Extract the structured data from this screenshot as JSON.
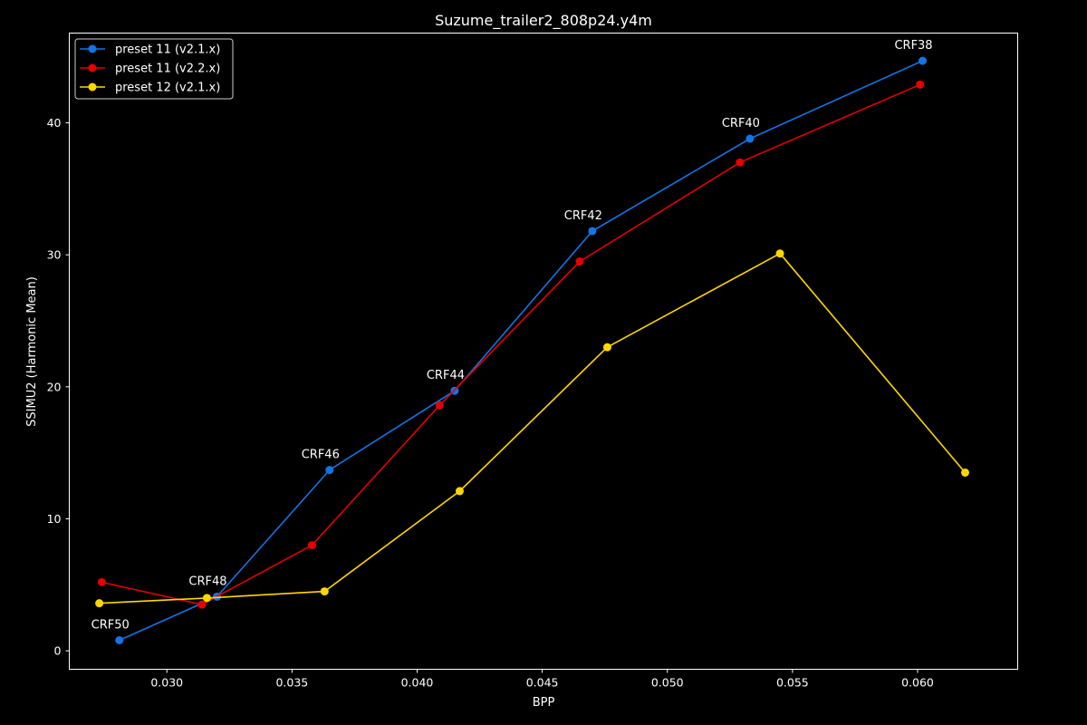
{
  "chart_data": {
    "type": "line",
    "title": "Suzume_trailer2_808p24.y4m",
    "xlabel": "BPP",
    "ylabel": "SSIMU2 (Harmonic Mean)",
    "xlim": [
      0.0261,
      0.064
    ],
    "ylim": [
      -1.4,
      46.8
    ],
    "x_ticks": [
      "0.030",
      "0.035",
      "0.040",
      "0.045",
      "0.050",
      "0.055",
      "0.060"
    ],
    "x_tick_values": [
      0.03,
      0.035,
      0.04,
      0.045,
      0.05,
      0.055,
      0.06
    ],
    "y_ticks": [
      "0",
      "10",
      "20",
      "30",
      "40"
    ],
    "y_tick_values": [
      0,
      10,
      20,
      30,
      40
    ],
    "grid": false,
    "legend_position": "top-left",
    "series": [
      {
        "name": "preset 11 (v2.1.x)",
        "color": "#1473e6",
        "x": [
          0.0281,
          0.032,
          0.0365,
          0.0415,
          0.047,
          0.0533,
          0.0602
        ],
        "y": [
          0.8,
          4.1,
          13.7,
          19.7,
          31.8,
          38.8,
          44.7
        ]
      },
      {
        "name": "preset 11 (v2.2.x)",
        "color": "#e60000",
        "x": [
          0.0274,
          0.0314,
          0.0358,
          0.0409,
          0.0465,
          0.0529,
          0.0601
        ],
        "y": [
          5.2,
          3.5,
          8.0,
          18.6,
          29.5,
          37.0,
          42.9
        ]
      },
      {
        "name": "preset 12 (v2.1.x)",
        "color": "#ffd700",
        "x": [
          0.0273,
          0.0316,
          0.0363,
          0.0417,
          0.0476,
          0.0545,
          0.0619
        ],
        "y": [
          3.6,
          4.0,
          4.5,
          12.1,
          23.0,
          30.1,
          13.5
        ]
      }
    ],
    "annotations": [
      {
        "text": "CRF50",
        "x": 0.0281,
        "y": 0.8
      },
      {
        "text": "CRF48",
        "x": 0.032,
        "y": 4.1
      },
      {
        "text": "CRF46",
        "x": 0.0365,
        "y": 13.7
      },
      {
        "text": "CRF44",
        "x": 0.0415,
        "y": 19.7
      },
      {
        "text": "CRF42",
        "x": 0.047,
        "y": 31.8
      },
      {
        "text": "CRF40",
        "x": 0.0533,
        "y": 38.8
      },
      {
        "text": "CRF38",
        "x": 0.0602,
        "y": 44.7
      }
    ]
  }
}
